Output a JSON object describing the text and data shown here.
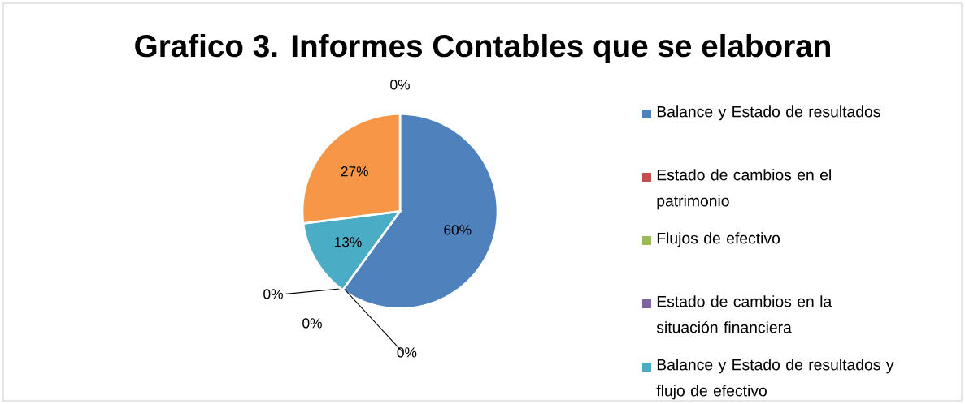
{
  "chart_data": {
    "type": "pie",
    "title": "Grafico 3. Informes Contables que se elaboran",
    "categories": [
      "Balance y Estado de resultados",
      "Estado de cambios en el patrimonio",
      "Flujos de efectivo",
      "Estado de cambios en la situación financiera",
      "Balance y Estado de resultados y flujo de efectivo",
      null,
      null
    ],
    "values": [
      60,
      0,
      0,
      0,
      13,
      27,
      0
    ],
    "colors": [
      "#4f81bd",
      "#c0504d",
      "#9bbb59",
      "#8064a2",
      "#4bacc6",
      "#f79646",
      "#2c4d75"
    ],
    "value_labels": [
      "60%",
      "0%",
      "0%",
      "0%",
      "13%",
      "27%",
      "0%"
    ],
    "legend": "right"
  }
}
